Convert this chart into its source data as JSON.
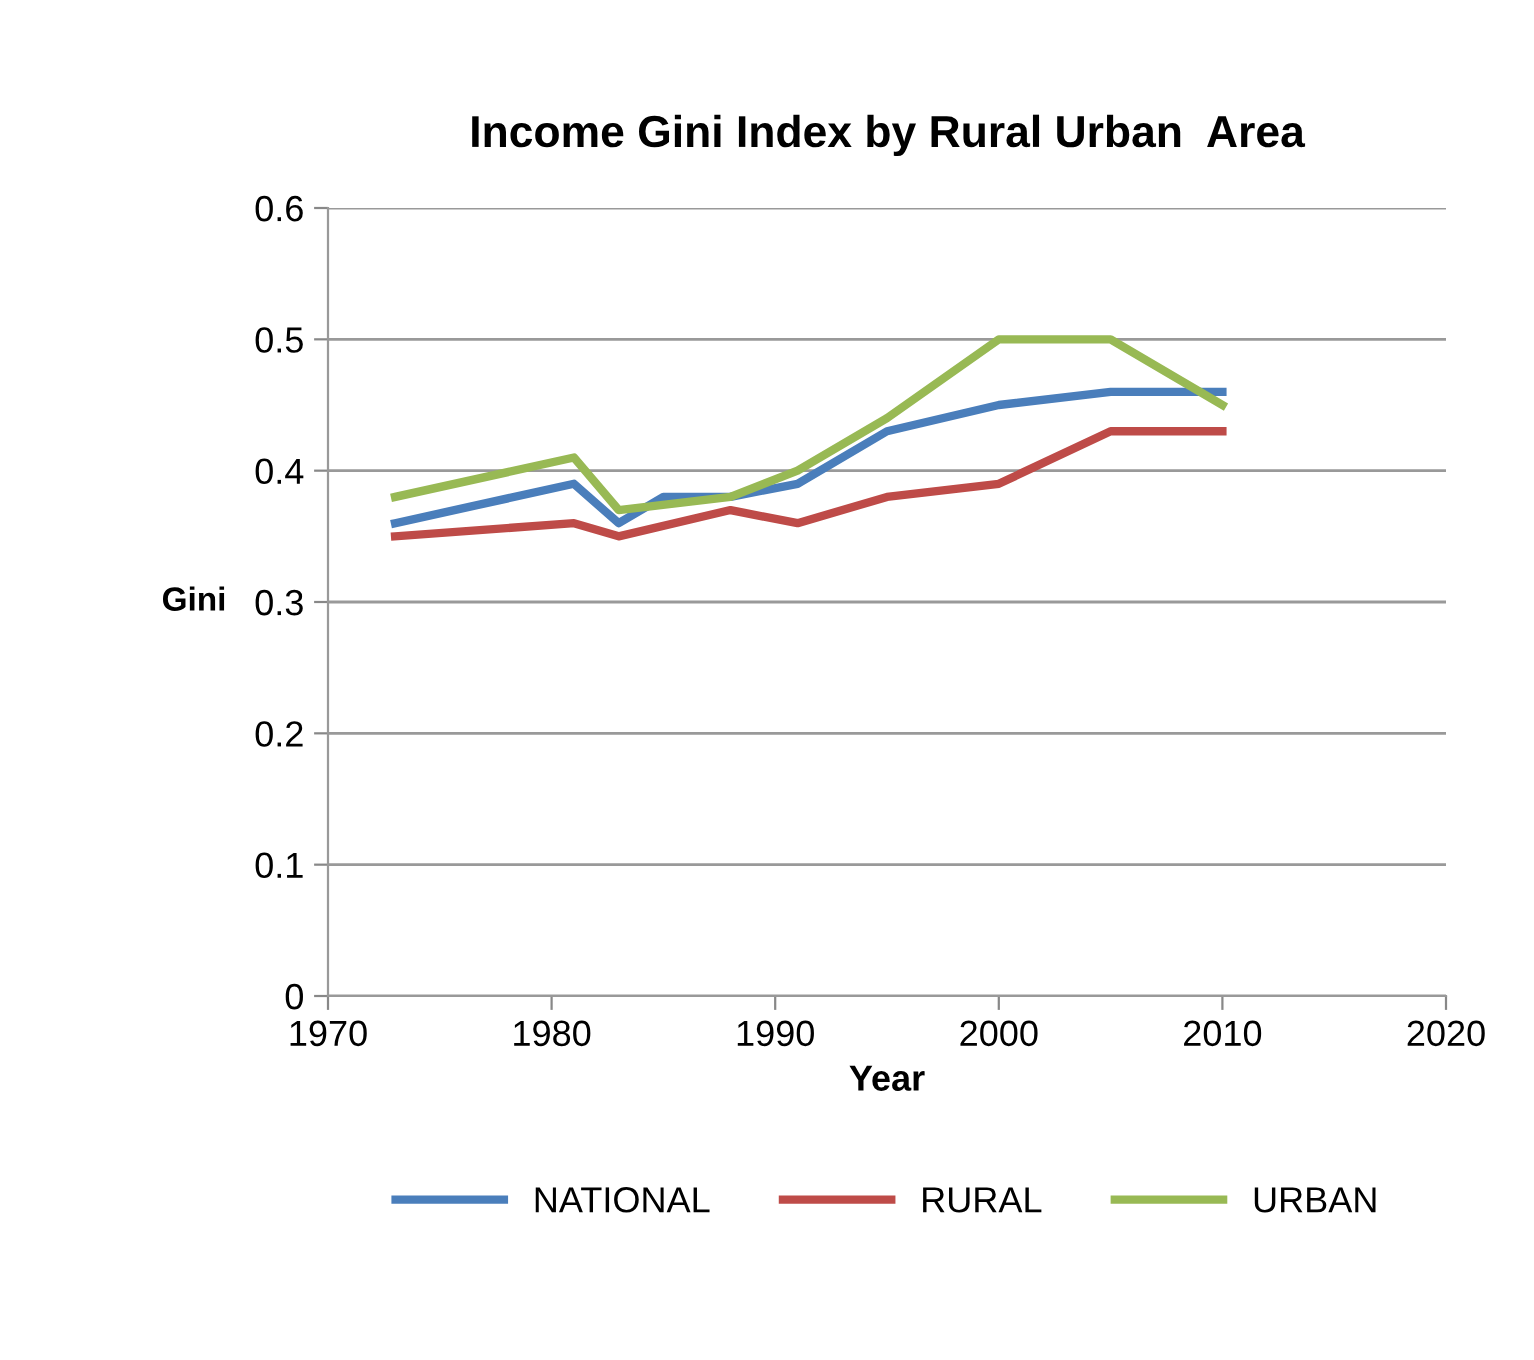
{
  "chart_data": {
    "type": "line",
    "title": "Income Gini Index by Rural Urban  Area",
    "xlabel": "Year",
    "ylabel": "Gini",
    "series": [
      {
        "name": "NATIONAL",
        "color": "#4a7ebb",
        "x": [
          1973,
          1981,
          1983,
          1985,
          1988,
          1991,
          1995,
          2000,
          2005,
          2010
        ],
        "values": [
          0.36,
          0.39,
          0.36,
          0.38,
          0.38,
          0.39,
          0.43,
          0.45,
          0.46,
          0.46
        ]
      },
      {
        "name": "RURAL",
        "color": "#be4b48",
        "x": [
          1973,
          1981,
          1983,
          1988,
          1991,
          1995,
          2000,
          2005,
          2010
        ],
        "values": [
          0.35,
          0.36,
          0.35,
          0.37,
          0.36,
          0.38,
          0.39,
          0.43,
          0.43
        ]
      },
      {
        "name": "URBAN",
        "color": "#98b954",
        "x": [
          1973,
          1981,
          1983,
          1988,
          1991,
          1995,
          2000,
          2005,
          2010
        ],
        "values": [
          0.38,
          0.41,
          0.37,
          0.38,
          0.4,
          0.44,
          0.5,
          0.5,
          0.45
        ]
      }
    ],
    "xlim": [
      1970,
      2020
    ],
    "xticks": [
      1970,
      1980,
      1990,
      2000,
      2010,
      2020
    ],
    "ylim": [
      0,
      0.6
    ],
    "yticks": [
      {
        "value": 0,
        "label": "0"
      },
      0.1,
      0.2,
      0.3,
      0.4,
      0.5,
      0.6
    ],
    "grid": "y",
    "legend": "bottom",
    "marker": "none",
    "line_style": "solid"
  }
}
